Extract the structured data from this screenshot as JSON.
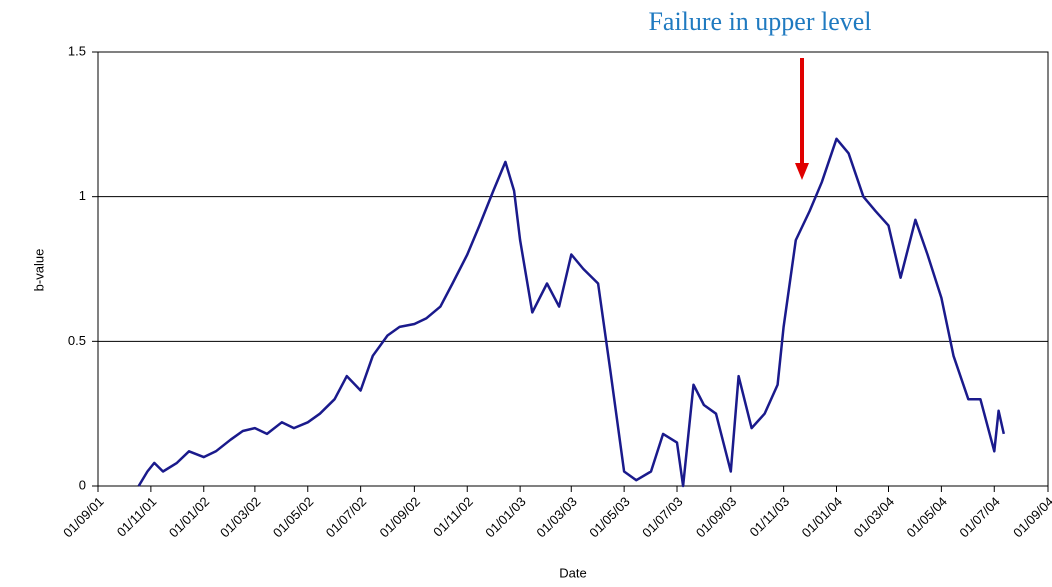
{
  "chart_data": {
    "type": "line",
    "annotation": "Failure in upper level",
    "xlabel": "Date",
    "ylabel": "b-value",
    "ylim": [
      0,
      1.5
    ],
    "yticks": [
      0,
      0.5,
      1,
      1.5
    ],
    "grid": true,
    "xlim": [
      "2001-09-01",
      "2004-09-01"
    ],
    "xticks": [
      {
        "value": "2001-09-01",
        "label": "01/09/01"
      },
      {
        "value": "2001-11-01",
        "label": "01/11/01"
      },
      {
        "value": "2002-01-01",
        "label": "01/01/02"
      },
      {
        "value": "2002-03-01",
        "label": "01/03/02"
      },
      {
        "value": "2002-05-01",
        "label": "01/05/02"
      },
      {
        "value": "2002-07-01",
        "label": "01/07/02"
      },
      {
        "value": "2002-09-01",
        "label": "01/09/02"
      },
      {
        "value": "2002-11-01",
        "label": "01/11/02"
      },
      {
        "value": "2003-01-01",
        "label": "01/01/03"
      },
      {
        "value": "2003-03-01",
        "label": "01/03/03"
      },
      {
        "value": "2003-05-01",
        "label": "01/05/03"
      },
      {
        "value": "2003-07-01",
        "label": "01/07/03"
      },
      {
        "value": "2003-09-01",
        "label": "01/09/03"
      },
      {
        "value": "2003-11-01",
        "label": "01/11/03"
      },
      {
        "value": "2004-01-01",
        "label": "01/01/04"
      },
      {
        "value": "2004-03-01",
        "label": "01/03/04"
      },
      {
        "value": "2004-05-01",
        "label": "01/05/04"
      },
      {
        "value": "2004-07-01",
        "label": "01/07/04"
      },
      {
        "value": "2004-09-01",
        "label": "01/09/04"
      }
    ],
    "x": [
      "2001-10-18",
      "2001-10-28",
      "2001-11-05",
      "2001-11-15",
      "2001-12-01",
      "2001-12-15",
      "2002-01-01",
      "2002-01-15",
      "2002-02-01",
      "2002-02-15",
      "2002-03-01",
      "2002-03-15",
      "2002-04-01",
      "2002-04-15",
      "2002-05-01",
      "2002-05-15",
      "2002-06-01",
      "2002-06-15",
      "2002-07-01",
      "2002-07-15",
      "2002-08-01",
      "2002-08-15",
      "2002-09-01",
      "2002-09-15",
      "2002-10-01",
      "2002-10-15",
      "2002-11-01",
      "2002-11-15",
      "2002-12-01",
      "2002-12-15",
      "2002-12-25",
      "2003-01-01",
      "2003-01-15",
      "2003-02-01",
      "2003-02-15",
      "2003-03-01",
      "2003-03-15",
      "2003-04-01",
      "2003-04-15",
      "2003-05-01",
      "2003-05-15",
      "2003-06-01",
      "2003-06-15",
      "2003-07-01",
      "2003-07-08",
      "2003-07-20",
      "2003-08-01",
      "2003-08-15",
      "2003-09-01",
      "2003-09-10",
      "2003-09-25",
      "2003-10-10",
      "2003-10-25",
      "2003-11-01",
      "2003-11-15",
      "2003-12-01",
      "2003-12-15",
      "2004-01-01",
      "2004-01-15",
      "2004-02-01",
      "2004-02-15",
      "2004-03-01",
      "2004-03-15",
      "2004-04-01",
      "2004-04-15",
      "2004-05-01",
      "2004-05-15",
      "2004-06-01",
      "2004-06-15",
      "2004-07-01",
      "2004-07-06",
      "2004-07-12"
    ],
    "series": [
      {
        "name": "b-value",
        "color": "#1a1a8c",
        "values": [
          0,
          0.05,
          0.08,
          0.05,
          0.08,
          0.12,
          0.1,
          0.12,
          0.16,
          0.19,
          0.2,
          0.18,
          0.22,
          0.2,
          0.22,
          0.25,
          0.3,
          0.38,
          0.33,
          0.45,
          0.52,
          0.55,
          0.56,
          0.58,
          0.62,
          0.7,
          0.8,
          0.9,
          1.02,
          1.12,
          1.02,
          0.85,
          0.6,
          0.7,
          0.62,
          0.8,
          0.75,
          0.7,
          0.4,
          0.05,
          0.02,
          0.05,
          0.18,
          0.15,
          0,
          0.35,
          0.28,
          0.25,
          0.05,
          0.38,
          0.2,
          0.25,
          0.35,
          0.55,
          0.85,
          0.95,
          1.05,
          1.2,
          1.15,
          1.0,
          0.95,
          0.9,
          0.72,
          0.92,
          0.8,
          0.65,
          0.45,
          0.3,
          0.3,
          0.12,
          0.26,
          0.18
        ]
      }
    ]
  }
}
